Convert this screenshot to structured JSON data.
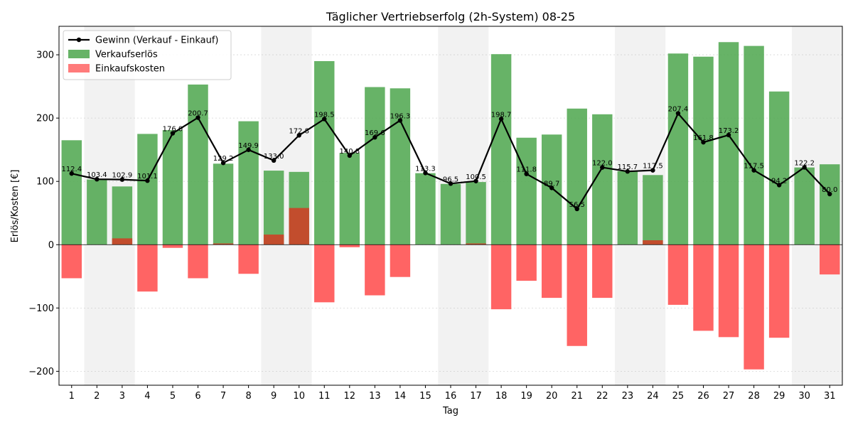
{
  "chart_data": {
    "type": "bar",
    "title": "Täglicher Vertriebserfolg (2h-System) 08-25",
    "xlabel": "Tag",
    "ylabel": "Erlös/Kosten [€]",
    "categories": [
      "1",
      "2",
      "3",
      "4",
      "5",
      "6",
      "7",
      "8",
      "9",
      "10",
      "11",
      "12",
      "13",
      "14",
      "15",
      "16",
      "17",
      "18",
      "19",
      "20",
      "21",
      "22",
      "23",
      "24",
      "25",
      "26",
      "27",
      "28",
      "29",
      "30",
      "31"
    ],
    "ylim": [
      -222,
      345
    ],
    "yticks": [
      -200,
      -100,
      0,
      100,
      200,
      300
    ],
    "grid": true,
    "legend_position": "top-left",
    "shaded_days": [
      2,
      3,
      9,
      10,
      16,
      17,
      23,
      24,
      30,
      31
    ],
    "series": [
      {
        "name": "Verkaufserlös",
        "kind": "bar",
        "color": "#4ca64c",
        "values": [
          165,
          103,
          92,
          175,
          181,
          253,
          128,
          195,
          117,
          115,
          290,
          145,
          249,
          247,
          113,
          96,
          99,
          301,
          169,
          174,
          215,
          206,
          116,
          110,
          302,
          297,
          320,
          314,
          242,
          122,
          127
        ]
      },
      {
        "name": "Einkaufskosten",
        "kind": "bar",
        "color": "#ff6464",
        "values": [
          -53,
          0,
          10,
          -74,
          -5,
          -53,
          2,
          -46,
          16,
          58,
          -91,
          -4,
          -80,
          -51,
          0,
          0,
          2,
          -102,
          -57,
          -84,
          -160,
          -84,
          0,
          7,
          -95,
          -136,
          -146,
          -197,
          -147,
          0,
          -47
        ]
      },
      {
        "name": "Gewinn (Verkauf - Einkauf)",
        "kind": "line",
        "color": "#000000",
        "values": [
          112.4,
          103.4,
          102.9,
          101.1,
          176.0,
          200.7,
          129.2,
          149.9,
          133.0,
          172.8,
          198.5,
          140.8,
          169.6,
          196.3,
          113.3,
          96.5,
          100.5,
          198.7,
          111.8,
          89.7,
          56.5,
          122.0,
          115.7,
          117.5,
          207.4,
          161.8,
          173.2,
          117.5,
          94.2,
          122.2,
          80.0
        ],
        "labels": [
          "112.4",
          "103.4",
          "102.9",
          "101.1",
          "176.0",
          "200.7",
          "129.2",
          "149.9",
          "133.0",
          "172.8",
          "198.5",
          "140.8",
          "169.6",
          "196.3",
          "113.3",
          "96.5",
          "100.5",
          "198.7",
          "111.8",
          "89.7",
          "56.5",
          "122.0",
          "115.7",
          "117.5",
          "207.4",
          "161.8",
          "173.2",
          "117.5",
          "94.2",
          "122.2",
          "80.0"
        ]
      }
    ]
  }
}
